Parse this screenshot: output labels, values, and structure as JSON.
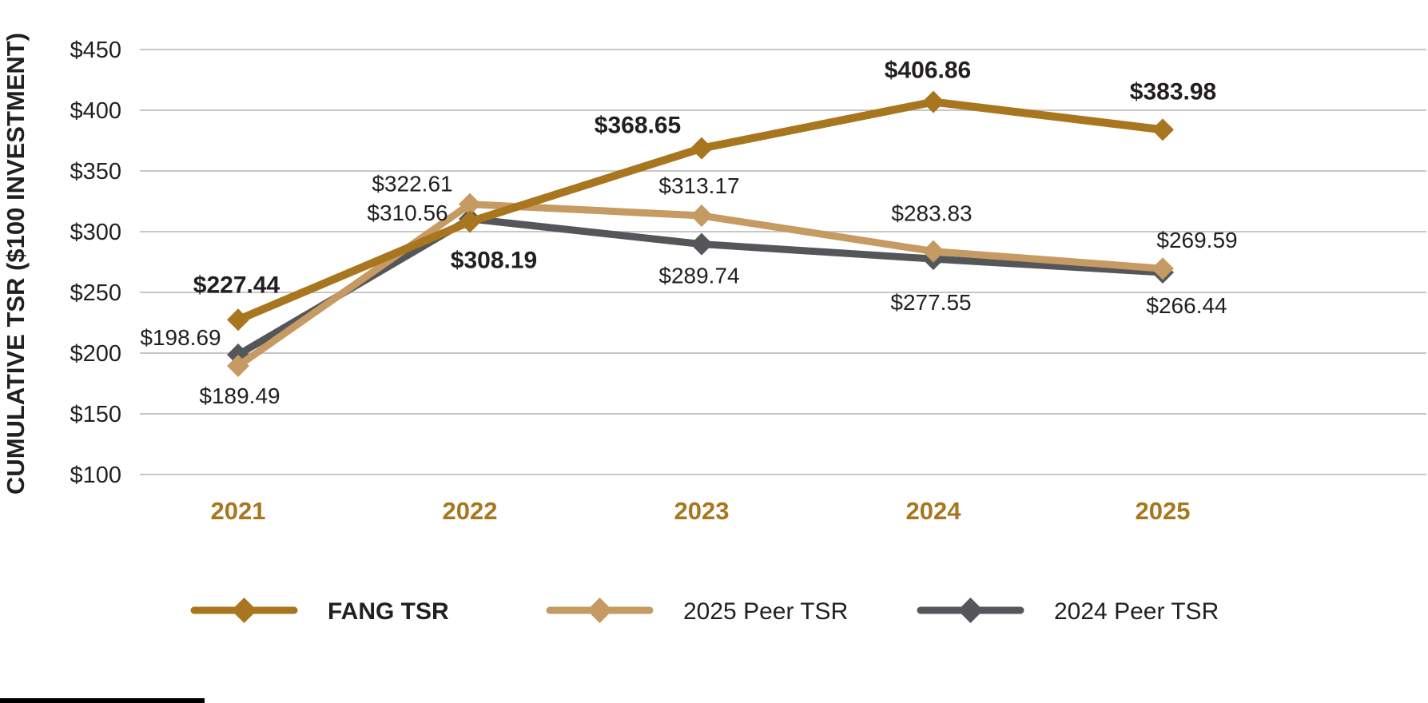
{
  "chart_data": {
    "type": "line",
    "title": "",
    "ylabel": "CUMULATIVE TSR ($100 INVESTMENT)",
    "xlabel": "",
    "x": [
      "2021",
      "2022",
      "2023",
      "2024",
      "2025"
    ],
    "series": [
      {
        "name": "FANG TSR",
        "color": "#A8761F",
        "bold_labels": true,
        "values": [
          227.44,
          308.19,
          368.65,
          406.86,
          383.98
        ]
      },
      {
        "name": "2025 Peer TSR",
        "color": "#C69B63",
        "bold_labels": false,
        "values": [
          189.49,
          322.61,
          313.17,
          283.83,
          269.59
        ]
      },
      {
        "name": "2024 Peer TSR",
        "color": "#54565A",
        "bold_labels": false,
        "values": [
          198.69,
          310.56,
          289.74,
          277.55,
          266.44
        ]
      }
    ],
    "ylim": [
      100,
      450
    ],
    "yticks": [
      100,
      150,
      200,
      250,
      300,
      350,
      400,
      450
    ],
    "value_prefix": "$",
    "grid": true,
    "legend_position": "bottom"
  },
  "colors": {
    "grid": "#C7C7C7",
    "text": "#231F20",
    "axis_year": "#A8761F"
  }
}
